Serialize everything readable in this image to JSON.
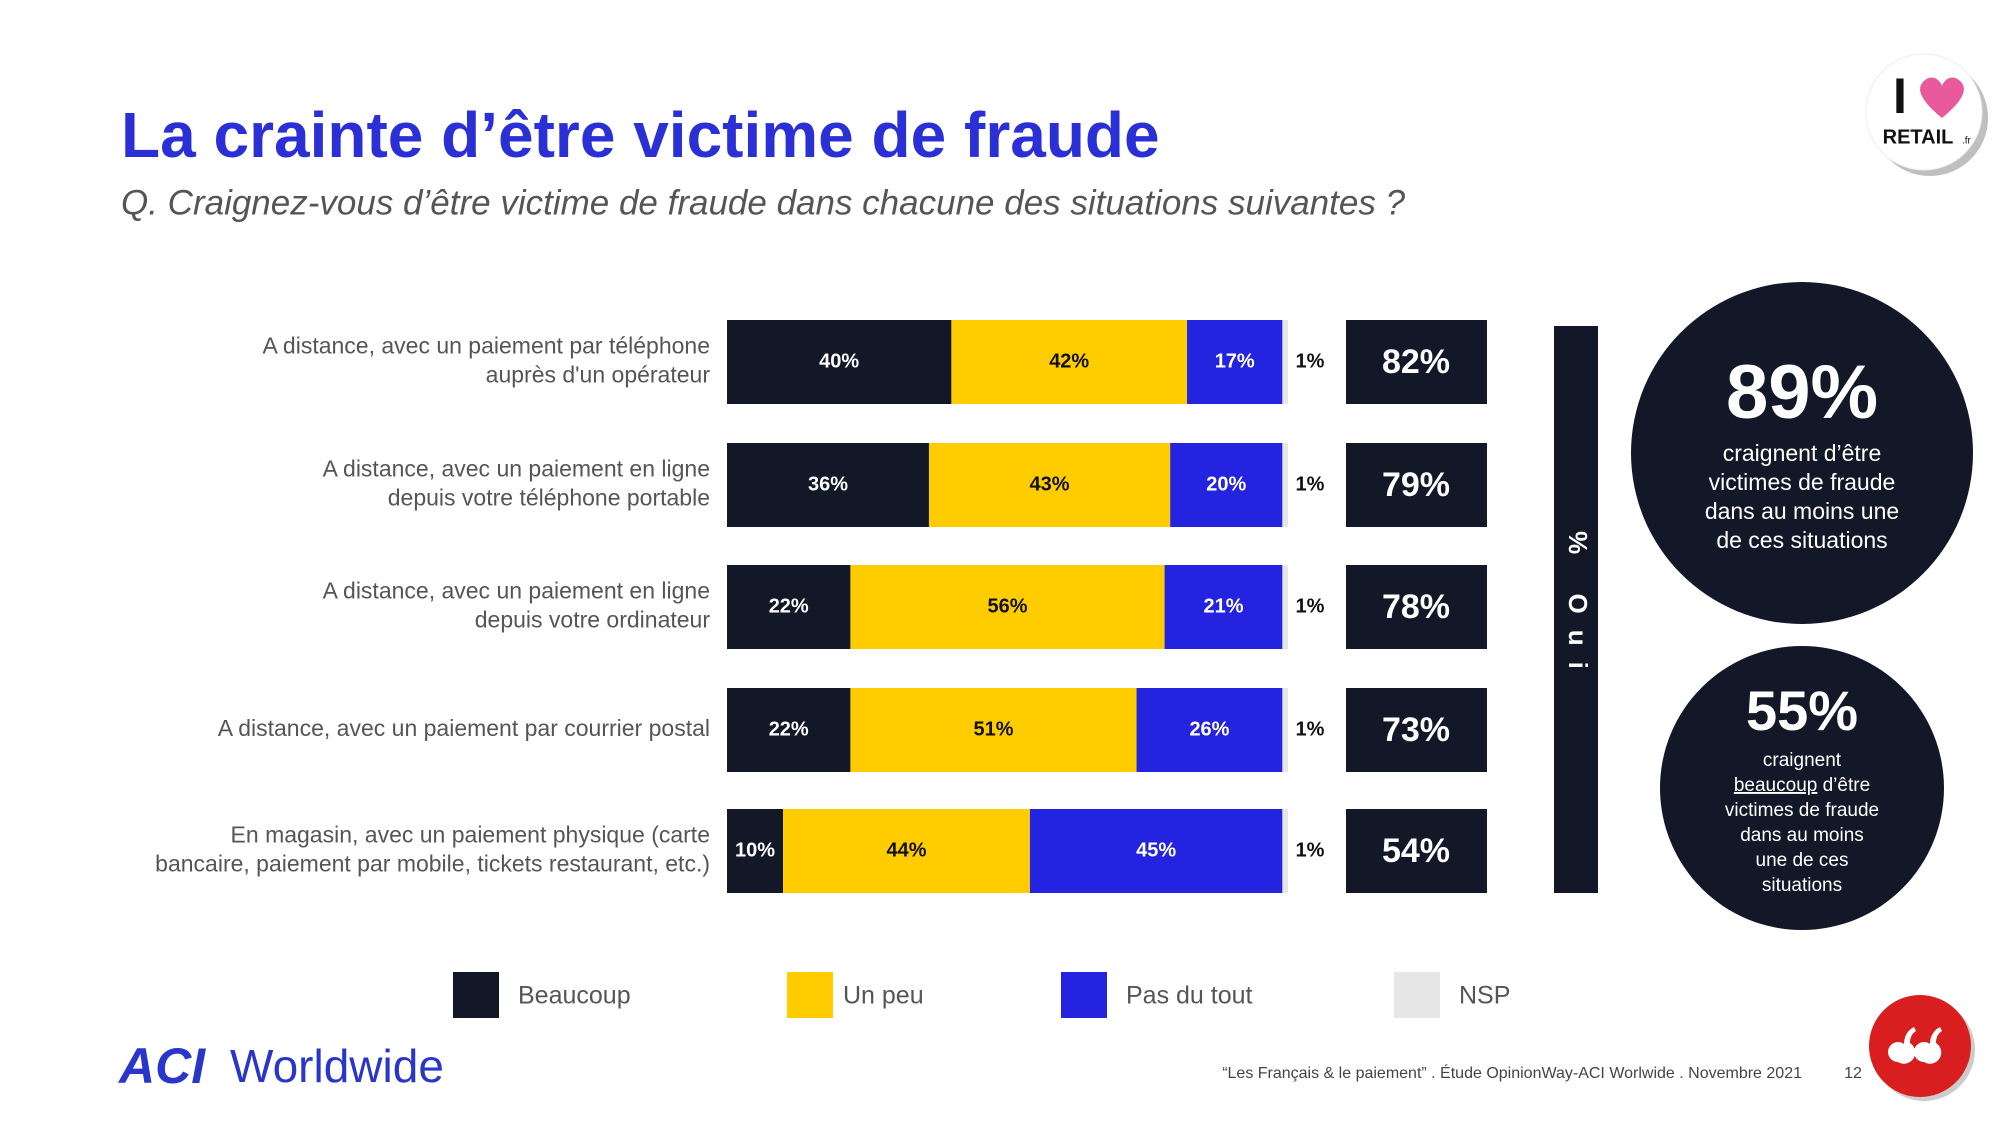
{
  "chart_data": {
    "type": "stacked-bar-horizontal",
    "title": "La crainte d’être victime de fraude",
    "subtitle": "Q. Craignez-vous d’être victime de fraude dans chacune des situations suivantes ?",
    "categories": [
      [
        "A distance, avec un paiement par téléphone",
        "auprès d'un opérateur"
      ],
      [
        "A distance, avec un paiement en ligne",
        "depuis votre téléphone portable"
      ],
      [
        "A distance, avec un paiement en ligne",
        "depuis votre ordinateur"
      ],
      [
        "A distance, avec un paiement par courrier postal"
      ],
      [
        "En magasin, avec un paiement physique (carte",
        "bancaire, paiement par mobile, tickets restaurant, etc.)"
      ]
    ],
    "xlim": [
      0,
      100
    ],
    "series": [
      {
        "name": "Beaucoup",
        "color": "#121827",
        "label_color": "#ffffff",
        "values": [
          40,
          36,
          22,
          22,
          10
        ],
        "value_labels": [
          "40%",
          "36%",
          "22%",
          "22%",
          "10%"
        ]
      },
      {
        "name": "Un peu",
        "color": "#ffcc00",
        "label_color": "#111111",
        "values": [
          42,
          43,
          56,
          51,
          44
        ],
        "value_labels": [
          "42%",
          "43%",
          "56%",
          "51%",
          "44%"
        ]
      },
      {
        "name": "Pas du tout",
        "color": "#2424e0",
        "label_color": "#ffffff",
        "values": [
          17,
          20,
          21,
          26,
          45
        ],
        "value_labels": [
          "17%",
          "20%",
          "21%",
          "26%",
          "45%"
        ]
      },
      {
        "name": "NSP",
        "color": "#e6e6e6",
        "label_color": "#111111",
        "values": [
          1,
          1,
          1,
          1,
          1
        ],
        "value_labels": [
          "1%",
          "1%",
          "1%",
          "1%",
          "1%"
        ]
      }
    ],
    "oui": {
      "label": "% Oui",
      "values": [
        82,
        79,
        78,
        73,
        54
      ],
      "value_labels": [
        "82%",
        "79%",
        "78%",
        "73%",
        "54%"
      ]
    }
  },
  "callouts": [
    {
      "value": "89%",
      "lines": [
        "craignent d’être",
        "victimes de fraude",
        "dans au moins une",
        "de ces situations"
      ]
    },
    {
      "value": "55%",
      "lines": [
        "craignent",
        [
          "beaucoup",
          " d’être"
        ],
        "victimes de fraude",
        "dans au moins",
        "une de ces",
        "situations"
      ]
    }
  ],
  "logo": {
    "top": [
      "I",
      "RETAIL",
      ".fr"
    ],
    "brand": [
      "ACI",
      "Worldwide"
    ]
  },
  "footer": {
    "source": "“Les Français & le paiement” . Étude OpinionWay-ACI Worlwide . Novembre 2021",
    "page": "12"
  }
}
